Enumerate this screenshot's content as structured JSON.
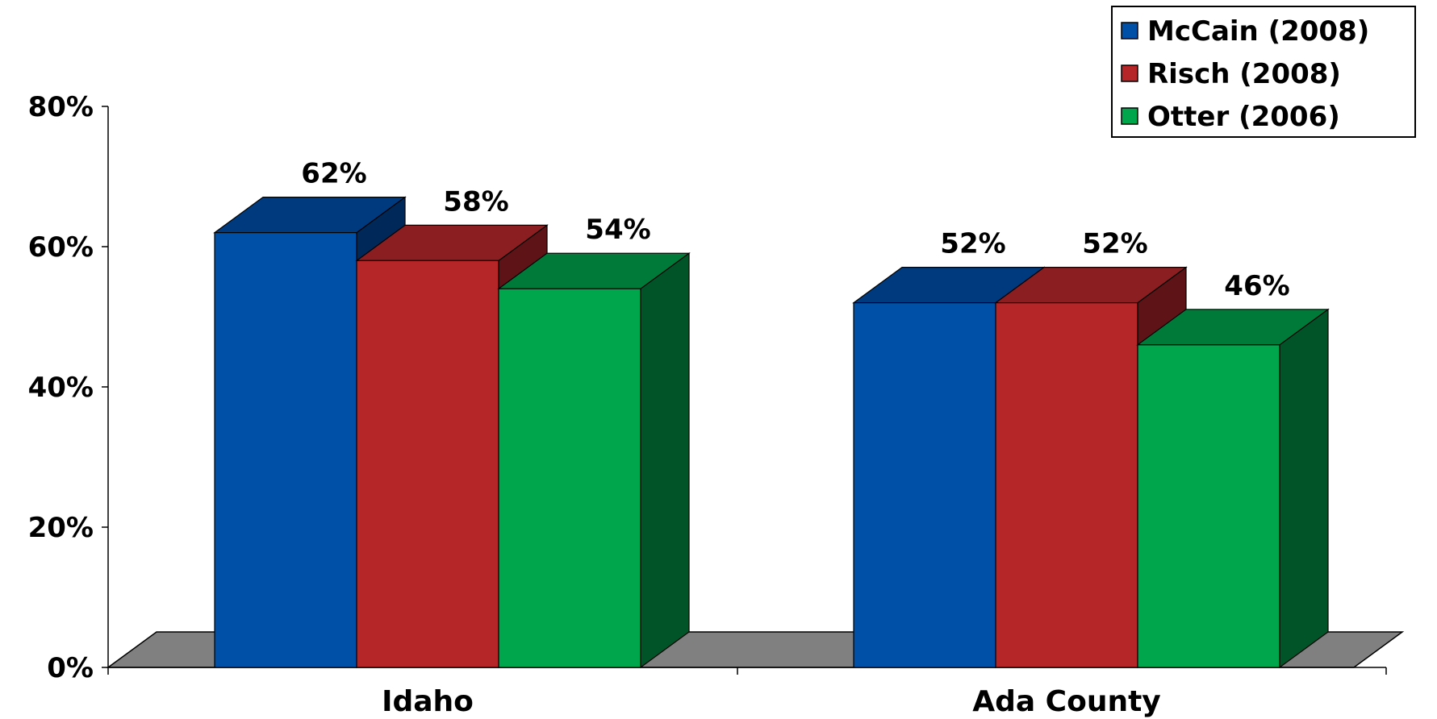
{
  "chart_data": {
    "type": "bar",
    "style": "3d-clustered-column",
    "categories": [
      "Idaho",
      "Ada County"
    ],
    "series": [
      {
        "name": "McCain (2008)",
        "values": [
          62,
          52
        ],
        "labels": [
          "62%",
          "52%"
        ],
        "color": "#0050A8",
        "top_color": "#003A7E",
        "side_color": "#00295A"
      },
      {
        "name": "Risch (2008)",
        "values": [
          58,
          52
        ],
        "labels": [
          "58%",
          "52%"
        ],
        "color": "#B52628",
        "top_color": "#8A1E21",
        "side_color": "#5E1416"
      },
      {
        "name": "Otter (2006)",
        "values": [
          54,
          46
        ],
        "labels": [
          "54%",
          "46%"
        ],
        "color": "#00A64C",
        "top_color": "#007A38",
        "side_color": "#005428"
      }
    ],
    "y_ticks": [
      "0%",
      "20%",
      "40%",
      "60%",
      "80%"
    ],
    "ylim": [
      0,
      80
    ],
    "y_unit": "%",
    "floor_color": "#808080",
    "legend_position": "top-right",
    "grid": false,
    "title": "",
    "xlabel": "",
    "ylabel": ""
  }
}
